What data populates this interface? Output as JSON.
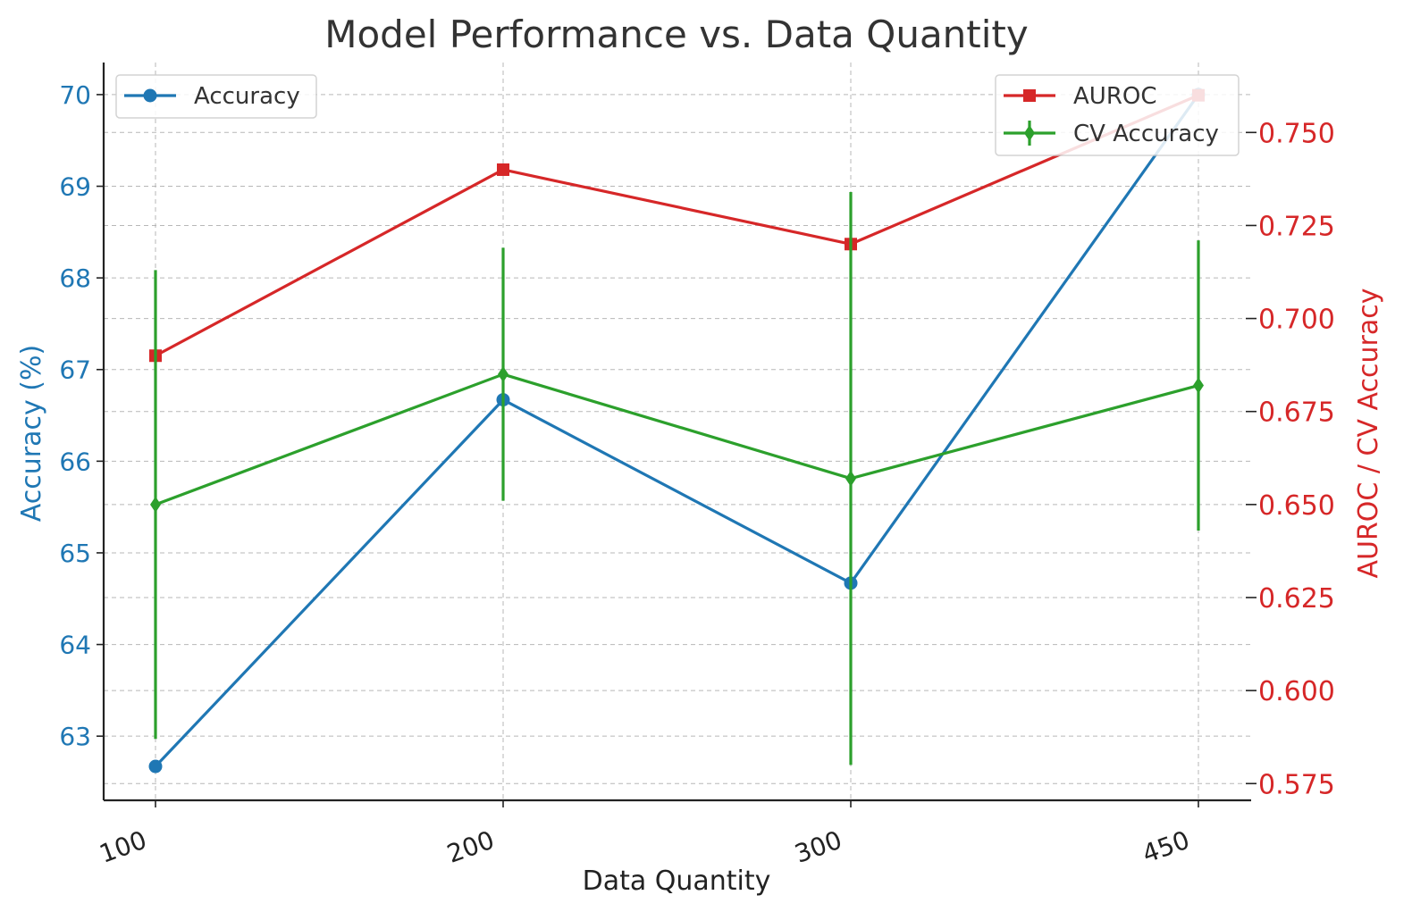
{
  "chart_data": {
    "type": "line",
    "title": "Model Performance vs. Data Quantity",
    "xlabel": "Data Quantity",
    "ylabel_left": "Accuracy (%)",
    "ylabel_right": "AUROC / CV Accuracy",
    "categories": [
      "100",
      "200",
      "300",
      "450"
    ],
    "left_ylim": [
      62.3,
      70.35
    ],
    "left_ticks": [
      "63",
      "64",
      "65",
      "66",
      "67",
      "68",
      "69",
      "70"
    ],
    "right_ylim": [
      0.5705,
      0.7688
    ],
    "right_ticks": [
      "0.575",
      "0.600",
      "0.625",
      "0.650",
      "0.675",
      "0.700",
      "0.725",
      "0.750"
    ],
    "grid": true,
    "series": [
      {
        "name": "Accuracy",
        "axis": "left",
        "color": "#1f77b4",
        "marker": "circle",
        "values": [
          62.67,
          66.67,
          64.67,
          70.0
        ]
      },
      {
        "name": "AUROC",
        "axis": "right",
        "color": "#d62728",
        "marker": "square",
        "values": [
          0.69,
          0.74,
          0.72,
          0.76
        ]
      },
      {
        "name": "CV Accuracy",
        "axis": "right",
        "color": "#2ca02c",
        "marker": "diamond",
        "values": [
          0.65,
          0.685,
          0.657,
          0.682
        ],
        "errors": [
          0.063,
          0.034,
          0.077,
          0.039
        ]
      }
    ],
    "legend_left": {
      "placement": "top-left",
      "entries": [
        "Accuracy"
      ]
    },
    "legend_right": {
      "placement": "top-right",
      "entries": [
        "AUROC",
        "CV Accuracy"
      ]
    },
    "colors": {
      "left_axis": "#1f77b4",
      "right_axis": "#d62728",
      "text": "#333333"
    }
  }
}
